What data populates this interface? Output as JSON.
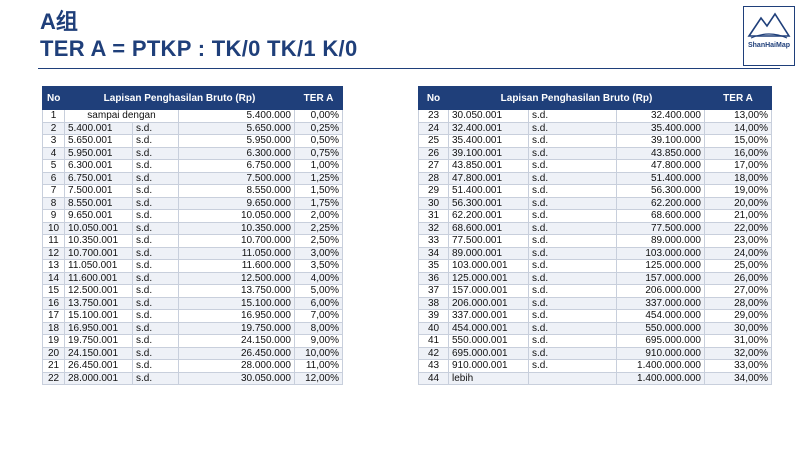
{
  "header": {
    "group": "A组",
    "title": "TER A = PTKP : TK/0 TK/1 K/0"
  },
  "logo": {
    "text": "ShanHaiMap"
  },
  "columns": {
    "no": "No",
    "range": "Lapisan Penghasilan Bruto (Rp)",
    "rate": "TER A"
  },
  "left_rows": [
    {
      "no": "1",
      "from": "",
      "sd": "sampai dengan",
      "to": "5.400.000",
      "rate": "0,00%"
    },
    {
      "no": "2",
      "from": "5.400.001",
      "sd": "s.d.",
      "to": "5.650.000",
      "rate": "0,25%"
    },
    {
      "no": "3",
      "from": "5.650.001",
      "sd": "s.d.",
      "to": "5.950.000",
      "rate": "0,50%"
    },
    {
      "no": "4",
      "from": "5.950.001",
      "sd": "s.d.",
      "to": "6.300.000",
      "rate": "0,75%"
    },
    {
      "no": "5",
      "from": "6.300.001",
      "sd": "s.d.",
      "to": "6.750.000",
      "rate": "1,00%"
    },
    {
      "no": "6",
      "from": "6.750.001",
      "sd": "s.d.",
      "to": "7.500.000",
      "rate": "1,25%"
    },
    {
      "no": "7",
      "from": "7.500.001",
      "sd": "s.d.",
      "to": "8.550.000",
      "rate": "1,50%"
    },
    {
      "no": "8",
      "from": "8.550.001",
      "sd": "s.d.",
      "to": "9.650.000",
      "rate": "1,75%"
    },
    {
      "no": "9",
      "from": "9.650.001",
      "sd": "s.d.",
      "to": "10.050.000",
      "rate": "2,00%"
    },
    {
      "no": "10",
      "from": "10.050.001",
      "sd": "s.d.",
      "to": "10.350.000",
      "rate": "2,25%"
    },
    {
      "no": "11",
      "from": "10.350.001",
      "sd": "s.d.",
      "to": "10.700.000",
      "rate": "2,50%"
    },
    {
      "no": "12",
      "from": "10.700.001",
      "sd": "s.d.",
      "to": "11.050.000",
      "rate": "3,00%"
    },
    {
      "no": "13",
      "from": "11.050.001",
      "sd": "s.d.",
      "to": "11.600.000",
      "rate": "3,50%"
    },
    {
      "no": "14",
      "from": "11.600.001",
      "sd": "s.d.",
      "to": "12.500.000",
      "rate": "4,00%"
    },
    {
      "no": "15",
      "from": "12.500.001",
      "sd": "s.d.",
      "to": "13.750.000",
      "rate": "5,00%"
    },
    {
      "no": "16",
      "from": "13.750.001",
      "sd": "s.d.",
      "to": "15.100.000",
      "rate": "6,00%"
    },
    {
      "no": "17",
      "from": "15.100.001",
      "sd": "s.d.",
      "to": "16.950.000",
      "rate": "7,00%"
    },
    {
      "no": "18",
      "from": "16.950.001",
      "sd": "s.d.",
      "to": "19.750.000",
      "rate": "8,00%"
    },
    {
      "no": "19",
      "from": "19.750.001",
      "sd": "s.d.",
      "to": "24.150.000",
      "rate": "9,00%"
    },
    {
      "no": "20",
      "from": "24.150.001",
      "sd": "s.d.",
      "to": "26.450.000",
      "rate": "10,00%"
    },
    {
      "no": "21",
      "from": "26.450.001",
      "sd": "s.d.",
      "to": "28.000.000",
      "rate": "11,00%"
    },
    {
      "no": "22",
      "from": "28.000.001",
      "sd": "s.d.",
      "to": "30.050.000",
      "rate": "12,00%"
    }
  ],
  "right_rows": [
    {
      "no": "23",
      "from": "30.050.001",
      "sd": "s.d.",
      "to": "32.400.000",
      "rate": "13,00%"
    },
    {
      "no": "24",
      "from": "32.400.001",
      "sd": "s.d.",
      "to": "35.400.000",
      "rate": "14,00%"
    },
    {
      "no": "25",
      "from": "35.400.001",
      "sd": "s.d.",
      "to": "39.100.000",
      "rate": "15,00%"
    },
    {
      "no": "26",
      "from": "39.100.001",
      "sd": "s.d.",
      "to": "43.850.000",
      "rate": "16,00%"
    },
    {
      "no": "27",
      "from": "43.850.001",
      "sd": "s.d.",
      "to": "47.800.000",
      "rate": "17,00%"
    },
    {
      "no": "28",
      "from": "47.800.001",
      "sd": "s.d.",
      "to": "51.400.000",
      "rate": "18,00%"
    },
    {
      "no": "29",
      "from": "51.400.001",
      "sd": "s.d.",
      "to": "56.300.000",
      "rate": "19,00%"
    },
    {
      "no": "30",
      "from": "56.300.001",
      "sd": "s.d.",
      "to": "62.200.000",
      "rate": "20,00%"
    },
    {
      "no": "31",
      "from": "62.200.001",
      "sd": "s.d.",
      "to": "68.600.000",
      "rate": "21,00%"
    },
    {
      "no": "32",
      "from": "68.600.001",
      "sd": "s.d.",
      "to": "77.500.000",
      "rate": "22,00%"
    },
    {
      "no": "33",
      "from": "77.500.001",
      "sd": "s.d.",
      "to": "89.000.000",
      "rate": "23,00%"
    },
    {
      "no": "34",
      "from": "89.000.001",
      "sd": "s.d.",
      "to": "103.000.000",
      "rate": "24,00%"
    },
    {
      "no": "35",
      "from": "103.000.001",
      "sd": "s.d.",
      "to": "125.000.000",
      "rate": "25,00%"
    },
    {
      "no": "36",
      "from": "125.000.001",
      "sd": "s.d.",
      "to": "157.000.000",
      "rate": "26,00%"
    },
    {
      "no": "37",
      "from": "157.000.001",
      "sd": "s.d.",
      "to": "206.000.000",
      "rate": "27,00%"
    },
    {
      "no": "38",
      "from": "206.000.001",
      "sd": "s.d.",
      "to": "337.000.000",
      "rate": "28,00%"
    },
    {
      "no": "39",
      "from": "337.000.001",
      "sd": "s.d.",
      "to": "454.000.000",
      "rate": "29,00%"
    },
    {
      "no": "40",
      "from": "454.000.001",
      "sd": "s.d.",
      "to": "550.000.000",
      "rate": "30,00%"
    },
    {
      "no": "41",
      "from": "550.000.001",
      "sd": "s.d.",
      "to": "695.000.000",
      "rate": "31,00%"
    },
    {
      "no": "42",
      "from": "695.000.001",
      "sd": "s.d.",
      "to": "910.000.000",
      "rate": "32,00%"
    },
    {
      "no": "43",
      "from": "910.000.001",
      "sd": "s.d.",
      "to": "1.400.000.000",
      "rate": "33,00%"
    },
    {
      "no": "44",
      "from": "lebih",
      "sd": "",
      "to": "1.400.000.000",
      "rate": "34,00%"
    }
  ]
}
